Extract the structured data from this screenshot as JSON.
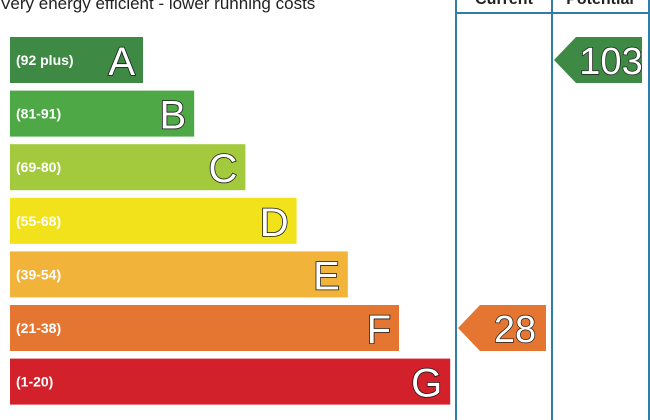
{
  "caption": "Very energy efficient - lower running costs",
  "columns": {
    "current": "Current",
    "potential": "Potential"
  },
  "chart_data": {
    "type": "bar",
    "title": "Very energy efficient - lower running costs",
    "bands": [
      {
        "letter": "A",
        "range": "(92 plus)",
        "color": "#3e8a45"
      },
      {
        "letter": "B",
        "range": "(81-91)",
        "color": "#4ea845"
      },
      {
        "letter": "C",
        "range": "(69-80)",
        "color": "#a3c93c"
      },
      {
        "letter": "D",
        "range": "(55-68)",
        "color": "#f1e21c"
      },
      {
        "letter": "E",
        "range": "(39-54)",
        "color": "#f2b33a"
      },
      {
        "letter": "F",
        "range": "(21-38)",
        "color": "#e57631"
      },
      {
        "letter": "G",
        "range": "(1-20)",
        "color": "#d2212b"
      }
    ],
    "current": {
      "value": 28,
      "band": "F",
      "color": "#e57631"
    },
    "potential": {
      "value": 103,
      "band": "A",
      "color": "#3e8a45"
    }
  }
}
